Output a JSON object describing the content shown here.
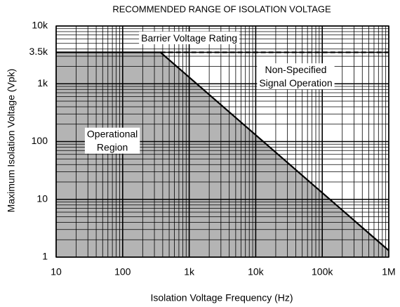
{
  "chart_data": {
    "type": "line",
    "title": "RECOMMENDED RANGE OF ISOLATION VOLTAGE",
    "xlabel": "Isolation Voltage Frequency (Hz)",
    "ylabel": "Maximum Isolation Voltage (Vpk)",
    "xscale": "log",
    "yscale": "log",
    "xlim": [
      10,
      1000000
    ],
    "ylim": [
      1,
      10000
    ],
    "xticks": [
      10,
      100,
      {
        "value": 1000,
        "label": "1k"
      },
      {
        "value": 10000,
        "label": "10k"
      },
      {
        "value": 100000,
        "label": "100k"
      },
      {
        "value": 1000000,
        "label": "1M"
      }
    ],
    "yticks": [
      1,
      10,
      100,
      {
        "value": 1000,
        "label": "1k"
      },
      {
        "value": 3500,
        "label": "3.5k"
      },
      {
        "value": 10000,
        "label": "10k"
      }
    ],
    "grid": true,
    "minor_grid": true,
    "series": [
      {
        "x": [
          10,
          370,
          1000000
        ],
        "values": [
          3500,
          3500,
          1.3
        ],
        "color": "#000000",
        "fill": "#b4b4b4"
      },
      {
        "x": [
          370,
          1000000
        ],
        "values": [
          3500,
          3500
        ],
        "color": "#000000",
        "dashed": true
      }
    ],
    "annotations": [
      {
        "lines": [
          "Barrier Voltage Rating"
        ],
        "x": 1000,
        "y": 6000
      },
      {
        "lines": [
          "Non-Specified",
          "Signal Operation"
        ],
        "x": 40000,
        "y": 1300
      },
      {
        "lines": [
          "Operational",
          "Region"
        ],
        "x": 70,
        "y": 100
      }
    ]
  }
}
